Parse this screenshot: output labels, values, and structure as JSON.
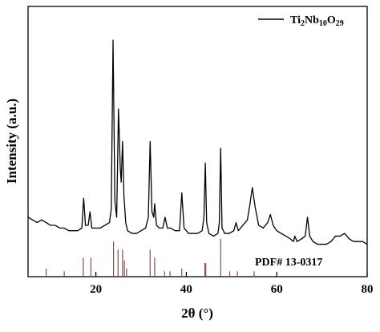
{
  "chart_data": {
    "type": "line",
    "xlabel": "2θ (°)",
    "ylabel": "Intensity (a.u.)",
    "xlim": [
      5,
      80
    ],
    "ylim": [
      0,
      100
    ],
    "xticks": [
      20,
      40,
      60,
      80
    ],
    "legend": "upper right",
    "series": [
      {
        "name": "Ti2Nb10O29",
        "color": "#000000",
        "x": [
          5,
          6,
          7,
          8,
          9,
          10,
          11,
          12,
          13,
          14,
          15,
          16,
          16.9,
          17.3,
          17.7,
          18.3,
          18.7,
          19.1,
          20,
          21,
          22,
          23,
          23.4,
          23.8,
          24.2,
          24.6,
          25,
          25.4,
          25.6,
          25.9,
          26.2,
          26.6,
          27,
          28,
          29,
          30,
          31,
          31.6,
          32,
          32.4,
          32.8,
          33,
          33.4,
          34,
          34.8,
          35.3,
          35.8,
          36.5,
          37.5,
          38.5,
          39,
          39.5,
          40.5,
          41.5,
          42.5,
          43.5,
          43.9,
          44.2,
          44.5,
          45,
          46,
          47,
          47.3,
          47.6,
          47.9,
          48.5,
          49.5,
          50.5,
          51,
          51.5,
          52.5,
          53.5,
          54,
          54.6,
          55.2,
          56,
          57,
          58,
          58.6,
          59.2,
          60,
          61,
          62,
          63,
          63.7,
          64,
          64.5,
          65.5,
          66.3,
          66.8,
          67.3,
          68,
          69,
          70,
          71,
          72,
          73,
          74,
          75,
          76,
          77,
          78,
          79,
          80
        ],
        "values": [
          22,
          21,
          20,
          21,
          20,
          19,
          19,
          18,
          18,
          17,
          17,
          17,
          18,
          29,
          19,
          19,
          24,
          18,
          18,
          18,
          19,
          20,
          25,
          87.5,
          28,
          22,
          62,
          40,
          35,
          50,
          30,
          20,
          17,
          16,
          16,
          17,
          18,
          22,
          50,
          24,
          22,
          27,
          19,
          18,
          18,
          22,
          18,
          18,
          17,
          17,
          31,
          18,
          16,
          16,
          16,
          17,
          22,
          42,
          20,
          16,
          15,
          16,
          20,
          47.5,
          18,
          16,
          16,
          17,
          20,
          17,
          19,
          21,
          26,
          33,
          26,
          19,
          18,
          20,
          23,
          19,
          17,
          16,
          15,
          14,
          13,
          15,
          13,
          14,
          15,
          22,
          15,
          13,
          12,
          12,
          12,
          13,
          15,
          15,
          16,
          14,
          13,
          13,
          13,
          12
        ]
      }
    ],
    "reference": {
      "name": "PDF# 13-0317",
      "color": "#8b4a4a",
      "x": [
        9,
        13,
        17.2,
        18.9,
        23.9,
        24.9,
        25.9,
        26.3,
        26.8,
        32,
        33,
        35.2,
        36.4,
        39,
        44.1,
        44.3,
        47.6,
        49.6,
        51.3,
        55
      ],
      "values": [
        3,
        2,
        7,
        7,
        13,
        10,
        10,
        6,
        3,
        10,
        7,
        2,
        2,
        3,
        5,
        5,
        14,
        2,
        2,
        2
      ]
    }
  }
}
